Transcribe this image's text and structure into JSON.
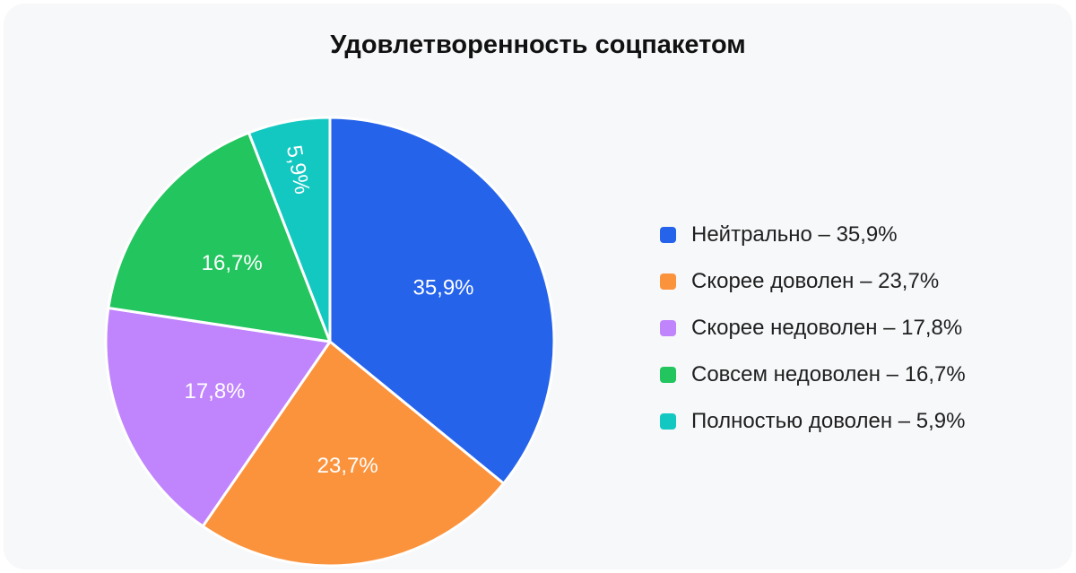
{
  "chart_data": {
    "type": "pie",
    "title": "Удовлетворенность соцпакетом",
    "slices": [
      {
        "label": "Нейтрально",
        "value": 35.9,
        "value_label": "35,9%",
        "legend_text": "Нейтрально – 35,9%",
        "color": "#2563eb"
      },
      {
        "label": "Скорее доволен",
        "value": 23.7,
        "value_label": "23,7%",
        "legend_text": "Скорее доволен – 23,7%",
        "color": "#fb923c"
      },
      {
        "label": "Скорее недоволен",
        "value": 17.8,
        "value_label": "17,8%",
        "legend_text": "Скорее недоволен – 17,8%",
        "color": "#c084fc"
      },
      {
        "label": "Совсем недоволен",
        "value": 16.7,
        "value_label": "16,7%",
        "legend_text": "Совсем недоволен – 16,7%",
        "color": "#22c55e"
      },
      {
        "label": "Полностью доволен",
        "value": 5.9,
        "value_label": "5,9%",
        "legend_text": "Полностью доволен – 5,9%",
        "color": "#14c8c2"
      }
    ],
    "legend_position": "right"
  }
}
